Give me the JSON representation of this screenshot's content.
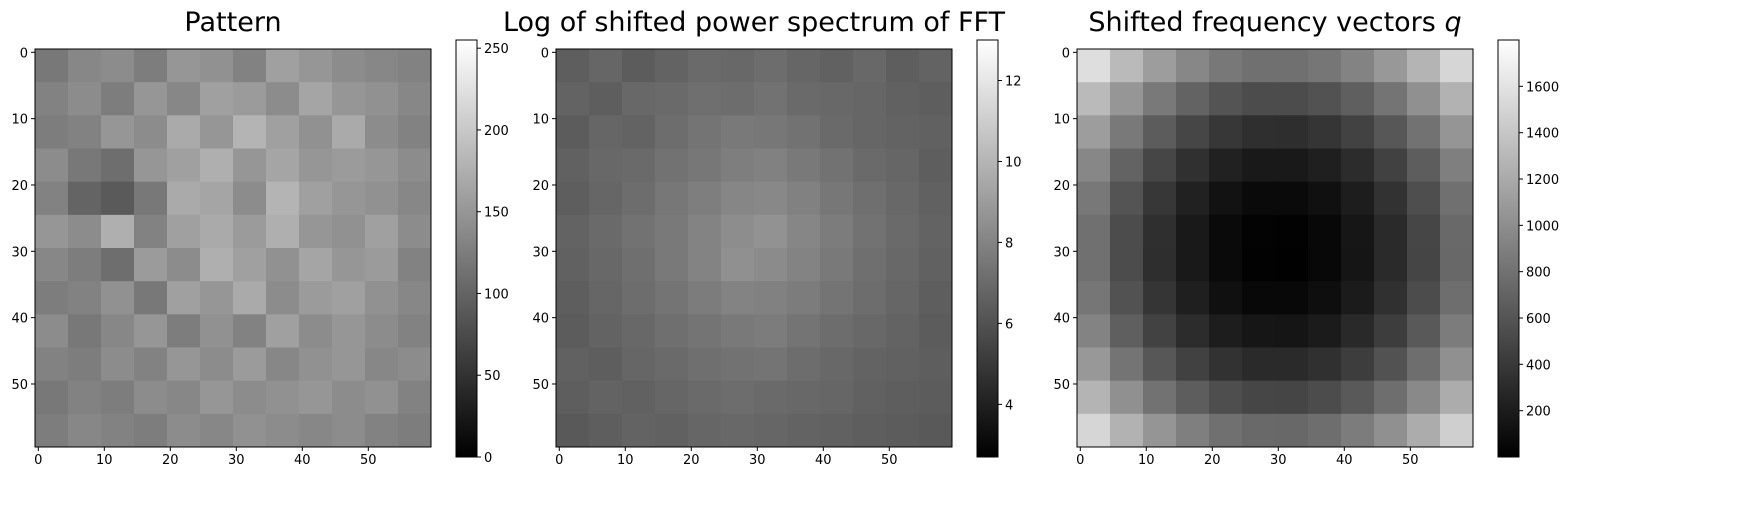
{
  "chart_data": [
    {
      "type": "heatmap",
      "title": "Pattern",
      "cmap": "gray",
      "xlim": [
        -0.5,
        59.5
      ],
      "ylim": [
        59.5,
        -0.5
      ],
      "xticks": [
        0,
        10,
        20,
        30,
        40,
        50
      ],
      "yticks": [
        0,
        10,
        20,
        30,
        40,
        50
      ],
      "clim": [
        0,
        255
      ],
      "cticks": [
        0,
        50,
        100,
        150,
        200,
        250
      ],
      "z": [
        [
          120,
          135,
          140,
          125,
          150,
          145,
          130,
          160,
          150,
          140,
          135,
          130
        ],
        [
          130,
          140,
          125,
          150,
          135,
          160,
          155,
          140,
          165,
          150,
          145,
          135
        ],
        [
          125,
          130,
          150,
          140,
          170,
          150,
          180,
          160,
          145,
          170,
          140,
          130
        ],
        [
          140,
          120,
          110,
          150,
          160,
          175,
          150,
          165,
          150,
          155,
          150,
          140
        ],
        [
          130,
          100,
          90,
          120,
          170,
          165,
          140,
          180,
          160,
          150,
          145,
          135
        ],
        [
          150,
          140,
          175,
          130,
          160,
          170,
          155,
          175,
          150,
          145,
          160,
          140
        ],
        [
          135,
          125,
          110,
          155,
          140,
          175,
          160,
          145,
          165,
          150,
          155,
          130
        ],
        [
          125,
          130,
          145,
          120,
          160,
          150,
          170,
          140,
          155,
          160,
          145,
          135
        ],
        [
          140,
          120,
          135,
          150,
          125,
          145,
          130,
          160,
          140,
          150,
          140,
          130
        ],
        [
          130,
          125,
          140,
          130,
          150,
          140,
          155,
          135,
          145,
          150,
          135,
          140
        ],
        [
          120,
          130,
          125,
          140,
          135,
          150,
          140,
          145,
          150,
          140,
          145,
          130
        ],
        [
          125,
          135,
          130,
          125,
          140,
          135,
          145,
          140,
          135,
          140,
          130,
          125
        ]
      ]
    },
    {
      "type": "heatmap",
      "title": "Log of shifted power spectrum of FFT",
      "cmap": "gray",
      "xlim": [
        -0.5,
        59.5
      ],
      "ylim": [
        59.5,
        -0.5
      ],
      "xticks": [
        0,
        10,
        20,
        30,
        40,
        50
      ],
      "yticks": [
        0,
        10,
        20,
        30,
        40,
        50
      ],
      "clim": [
        2.7,
        13
      ],
      "cticks": [
        4,
        6,
        8,
        10,
        12
      ],
      "z": [
        [
          6.5,
          6.8,
          6.4,
          6.7,
          7.0,
          6.9,
          7.1,
          6.8,
          6.6,
          6.9,
          6.5,
          6.7
        ],
        [
          6.7,
          6.5,
          6.9,
          7.0,
          7.2,
          7.1,
          7.3,
          7.0,
          6.9,
          6.8,
          6.6,
          6.5
        ],
        [
          6.4,
          6.8,
          6.7,
          7.1,
          7.4,
          7.6,
          7.5,
          7.3,
          7.0,
          6.8,
          6.7,
          6.6
        ],
        [
          6.6,
          6.9,
          7.0,
          7.3,
          7.5,
          7.8,
          7.9,
          7.6,
          7.3,
          7.0,
          6.8,
          6.5
        ],
        [
          6.5,
          6.8,
          7.1,
          7.5,
          7.8,
          8.1,
          8.2,
          7.9,
          7.5,
          7.2,
          6.9,
          6.6
        ],
        [
          6.7,
          7.0,
          7.3,
          7.6,
          8.0,
          8.4,
          8.6,
          8.1,
          7.7,
          7.3,
          7.0,
          6.7
        ],
        [
          6.6,
          6.9,
          7.2,
          7.6,
          8.0,
          8.5,
          8.3,
          8.0,
          7.6,
          7.2,
          6.9,
          6.6
        ],
        [
          6.5,
          6.8,
          7.1,
          7.4,
          7.7,
          8.0,
          7.9,
          7.7,
          7.4,
          7.1,
          6.8,
          6.5
        ],
        [
          6.4,
          6.7,
          6.9,
          7.2,
          7.4,
          7.6,
          7.7,
          7.4,
          7.1,
          6.9,
          6.7,
          6.4
        ],
        [
          6.6,
          6.5,
          6.8,
          7.0,
          7.2,
          7.3,
          7.4,
          7.1,
          6.9,
          6.7,
          6.6,
          6.5
        ],
        [
          6.5,
          6.7,
          6.6,
          6.8,
          7.0,
          7.1,
          7.0,
          6.9,
          6.8,
          6.6,
          6.5,
          6.4
        ],
        [
          6.3,
          6.5,
          6.7,
          6.6,
          6.8,
          6.9,
          6.8,
          6.7,
          6.6,
          6.5,
          6.4,
          6.3
        ]
      ]
    },
    {
      "type": "heatmap",
      "title": "Shifted frequency vectors",
      "title_symbol": "q",
      "cmap": "gray",
      "xlim": [
        -0.5,
        59.5
      ],
      "ylim": [
        59.5,
        -0.5
      ],
      "xticks": [
        0,
        10,
        20,
        30,
        40,
        50
      ],
      "yticks": [
        0,
        10,
        20,
        30,
        40,
        50
      ],
      "clim": [
        0,
        1800
      ],
      "cticks": [
        200,
        400,
        600,
        800,
        1000,
        1200,
        1400,
        1600
      ],
      "z": [
        [
          1568,
          1313,
          1108,
          953,
          848,
          793,
          788,
          833,
          928,
          1073,
          1268,
          1513
        ],
        [
          1313,
          1058,
          853,
          698,
          593,
          538,
          533,
          578,
          673,
          818,
          1013,
          1258
        ],
        [
          1108,
          853,
          648,
          493,
          388,
          333,
          328,
          373,
          468,
          613,
          808,
          1053
        ],
        [
          953,
          698,
          493,
          338,
          233,
          178,
          173,
          218,
          313,
          458,
          653,
          898
        ],
        [
          848,
          593,
          388,
          233,
          128,
          73,
          68,
          113,
          208,
          353,
          548,
          793
        ],
        [
          793,
          538,
          333,
          178,
          73,
          18,
          13,
          58,
          153,
          298,
          493,
          738
        ],
        [
          788,
          533,
          328,
          173,
          68,
          13,
          8,
          53,
          148,
          293,
          488,
          733
        ],
        [
          833,
          578,
          373,
          218,
          113,
          58,
          53,
          98,
          193,
          338,
          533,
          778
        ],
        [
          928,
          673,
          468,
          313,
          208,
          153,
          148,
          193,
          288,
          433,
          628,
          873
        ],
        [
          1073,
          818,
          613,
          458,
          353,
          298,
          293,
          338,
          433,
          578,
          773,
          1018
        ],
        [
          1268,
          1013,
          808,
          653,
          548,
          493,
          488,
          533,
          628,
          773,
          968,
          1213
        ],
        [
          1513,
          1258,
          1053,
          898,
          793,
          738,
          733,
          778,
          873,
          1018,
          1213,
          1458
        ]
      ]
    }
  ]
}
